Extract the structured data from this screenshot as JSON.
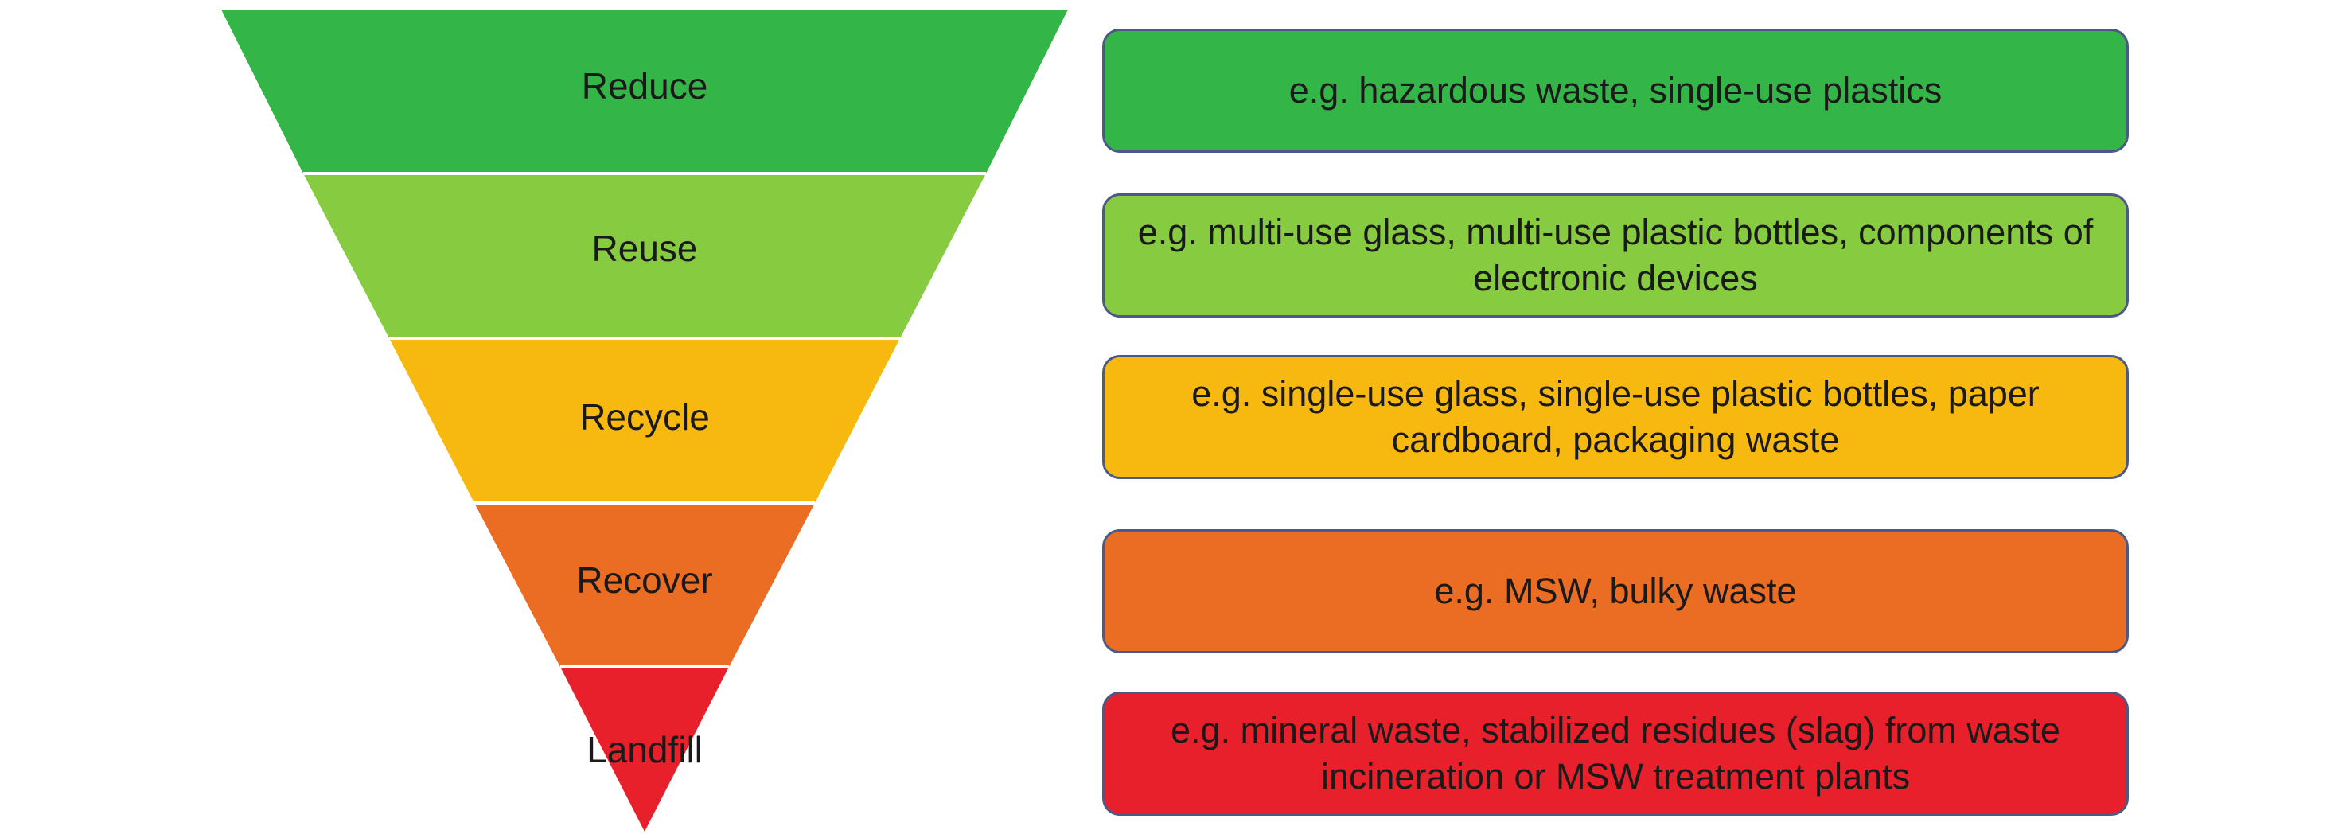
{
  "tiers": [
    {
      "label": "Reduce",
      "color": "#34b548",
      "example": "e.g. hazardous waste, single-use plastics"
    },
    {
      "label": "Reuse",
      "color": "#86cb40",
      "example": "e.g. multi-use glass, multi-use plastic bottles, components of electronic devices"
    },
    {
      "label": "Recycle",
      "color": "#f7b90f",
      "example": "e.g. single-use glass, single-use plastic bottles, paper cardboard, packaging waste"
    },
    {
      "label": "Recover",
      "color": "#eb6d23",
      "example": "e.g. MSW, bulky waste"
    },
    {
      "label": "Landfill",
      "color": "#e7202b",
      "example": "e.g. mineral waste, stabilized residues (slag) from waste incineration or MSW treatment plants"
    }
  ],
  "colors": {
    "box_border": "#4a5a85",
    "separator": "#ffffff",
    "text": "#1a1a1a"
  }
}
